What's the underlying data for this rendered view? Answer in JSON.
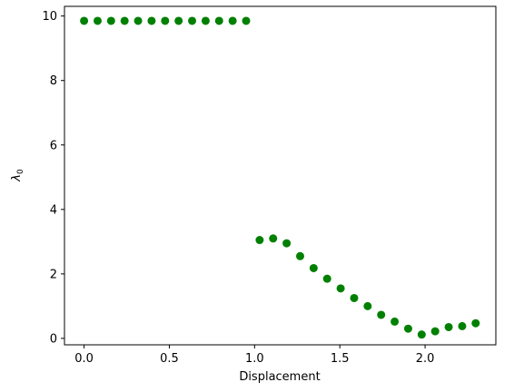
{
  "chart_data": {
    "type": "scatter",
    "title": "",
    "xlabel": "Displacement",
    "ylabel": "λ0",
    "xlim": [
      -0.115,
      2.415
    ],
    "ylim": [
      -0.2,
      10.3
    ],
    "xticks": [
      0.0,
      0.5,
      1.0,
      1.5,
      2.0
    ],
    "xtick_labels": [
      "0.0",
      "0.5",
      "1.0",
      "1.5",
      "2.0"
    ],
    "yticks": [
      0,
      2,
      4,
      6,
      8,
      10
    ],
    "ytick_labels": [
      "0",
      "2",
      "4",
      "6",
      "8",
      "10"
    ],
    "grid": false,
    "legend": "none",
    "marker_color": "#008000",
    "series": [
      {
        "x": [
          0.0,
          0.0792,
          0.1584,
          0.2376,
          0.3168,
          0.396,
          0.4752,
          0.5544,
          0.6336,
          0.7128,
          0.792,
          0.8712,
          0.9504,
          1.0296,
          1.1088,
          1.188,
          1.2672,
          1.3464,
          1.4256,
          1.5048,
          1.584,
          1.6632,
          1.7424,
          1.8216,
          1.9008,
          1.98,
          2.0592,
          2.1384,
          2.2176,
          2.2968
        ],
        "y": [
          9.85,
          9.85,
          9.85,
          9.85,
          9.85,
          9.85,
          9.85,
          9.85,
          9.85,
          9.85,
          9.85,
          9.85,
          9.85,
          3.05,
          3.1,
          2.95,
          2.55,
          2.18,
          1.85,
          1.55,
          1.25,
          1.0,
          0.73,
          0.52,
          0.3,
          0.12,
          0.22,
          0.35,
          0.38,
          0.47
        ]
      }
    ]
  }
}
